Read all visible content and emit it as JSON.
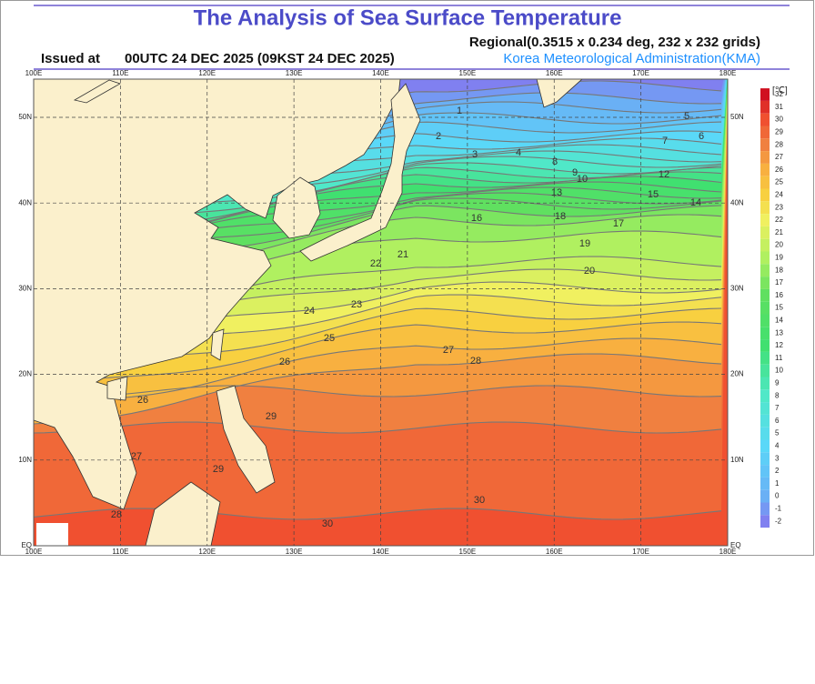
{
  "header": {
    "title": "The Analysis of Sea Surface Temperature",
    "issued_label": "Issued at",
    "issued_time": "00UTC 24 DEC 2025 (09KST 24 DEC 2025)",
    "grid_info": "Regional(0.3515 x 0.234 deg, 232 x 232 grids)",
    "agency": "Korea Meteorological Administration(KMA)"
  },
  "map": {
    "lon_labels": [
      "100E",
      "110E",
      "120E",
      "130E",
      "140E",
      "150E",
      "160E",
      "170E",
      "180E"
    ],
    "lat_labels": [
      "EQ",
      "10N",
      "20N",
      "30N",
      "40N",
      "50N"
    ],
    "colorbar": {
      "unit": "[℃]",
      "labels": [
        "32",
        "31",
        "30",
        "29",
        "28",
        "27",
        "26",
        "25",
        "24",
        "23",
        "22",
        "21",
        "20",
        "19",
        "18",
        "17",
        "16",
        "15",
        "14",
        "13",
        "12",
        "11",
        "10",
        "9",
        "8",
        "7",
        "6",
        "5",
        "4",
        "3",
        "2",
        "1",
        "0",
        "-1",
        "-2"
      ]
    },
    "contour_labels": [
      "1",
      "2",
      "3",
      "4",
      "5",
      "6",
      "7",
      "8",
      "9",
      "10",
      "12",
      "13",
      "14",
      "15",
      "16",
      "17",
      "18",
      "19",
      "20",
      "21",
      "22",
      "23",
      "24",
      "25",
      "26",
      "27",
      "28",
      "29",
      "30",
      "26",
      "27",
      "28",
      "29",
      "30"
    ]
  }
}
